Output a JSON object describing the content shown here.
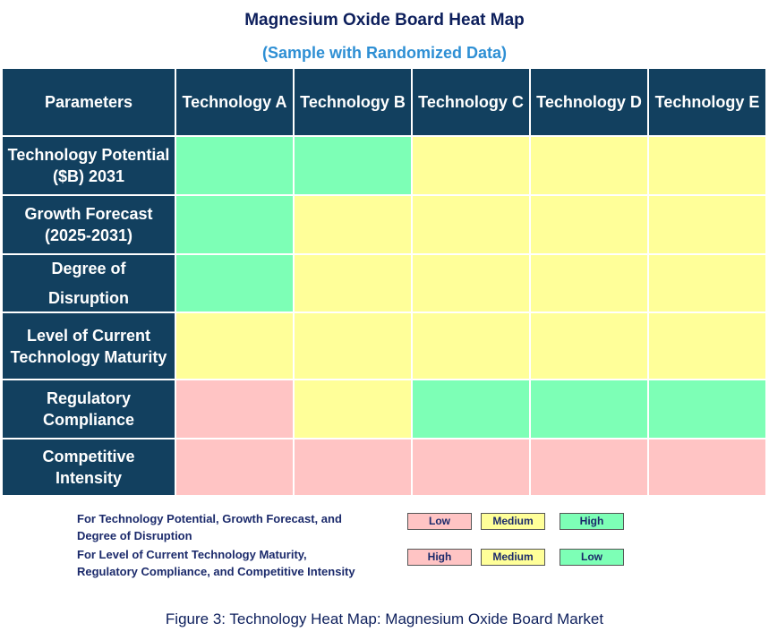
{
  "title": "Magnesium Oxide Board Heat Map",
  "subtitle": "(Sample with Randomized Data)",
  "table": {
    "header": [
      "Parameters",
      "Technology A",
      "Technology B",
      "Technology C",
      "Technology D",
      "Technology E"
    ],
    "rows": [
      {
        "label": [
          "Technology Potential",
          "($B) 2031"
        ],
        "colors": [
          "#7dffb6",
          "#7dffb6",
          "#ffff99",
          "#ffff99",
          "#ffff99"
        ]
      },
      {
        "label": [
          "Growth Forecast",
          "(2025-2031)"
        ],
        "colors": [
          "#7dffb6",
          "#ffff99",
          "#ffff99",
          "#ffff99",
          "#ffff99"
        ]
      },
      {
        "label": [
          "Degree of",
          "Disruption"
        ],
        "colors": [
          "#7dffb6",
          "#ffff99",
          "#ffff99",
          "#ffff99",
          "#ffff99"
        ]
      },
      {
        "label": [
          "Level of Current",
          "Technology Maturity"
        ],
        "colors": [
          "#ffff99",
          "#ffff99",
          "#ffff99",
          "#ffff99",
          "#ffff99"
        ]
      },
      {
        "label": [
          "Regulatory",
          "Compliance"
        ],
        "colors": [
          "#ffc4c4",
          "#ffff99",
          "#7dffb6",
          "#7dffb6",
          "#7dffb6"
        ]
      },
      {
        "label": [
          "Competitive",
          "Intensity"
        ],
        "colors": [
          "#ffc4c4",
          "#ffc4c4",
          "#ffc4c4",
          "#ffc4c4",
          "#ffc4c4"
        ]
      }
    ]
  },
  "legend": [
    {
      "text": [
        "For Technology Potential, Growth Forecast, and",
        "Degree of Disruption"
      ],
      "items": [
        {
          "label": "Low",
          "color": "#ffc4c4"
        },
        {
          "label": "Medium",
          "color": "#ffff99"
        },
        {
          "label": "High",
          "color": "#7dffb6"
        }
      ]
    },
    {
      "text": [
        "For Level of Current Technology Maturity,",
        "Regulatory Compliance, and Competitive Intensity"
      ],
      "items": [
        {
          "label": "High",
          "color": "#ffc4c4"
        },
        {
          "label": "Medium",
          "color": "#ffff99"
        },
        {
          "label": "Low",
          "color": "#7dffb6"
        }
      ]
    }
  ],
  "caption": "Figure 3: Technology Heat Map: Magnesium Oxide Board Market"
}
